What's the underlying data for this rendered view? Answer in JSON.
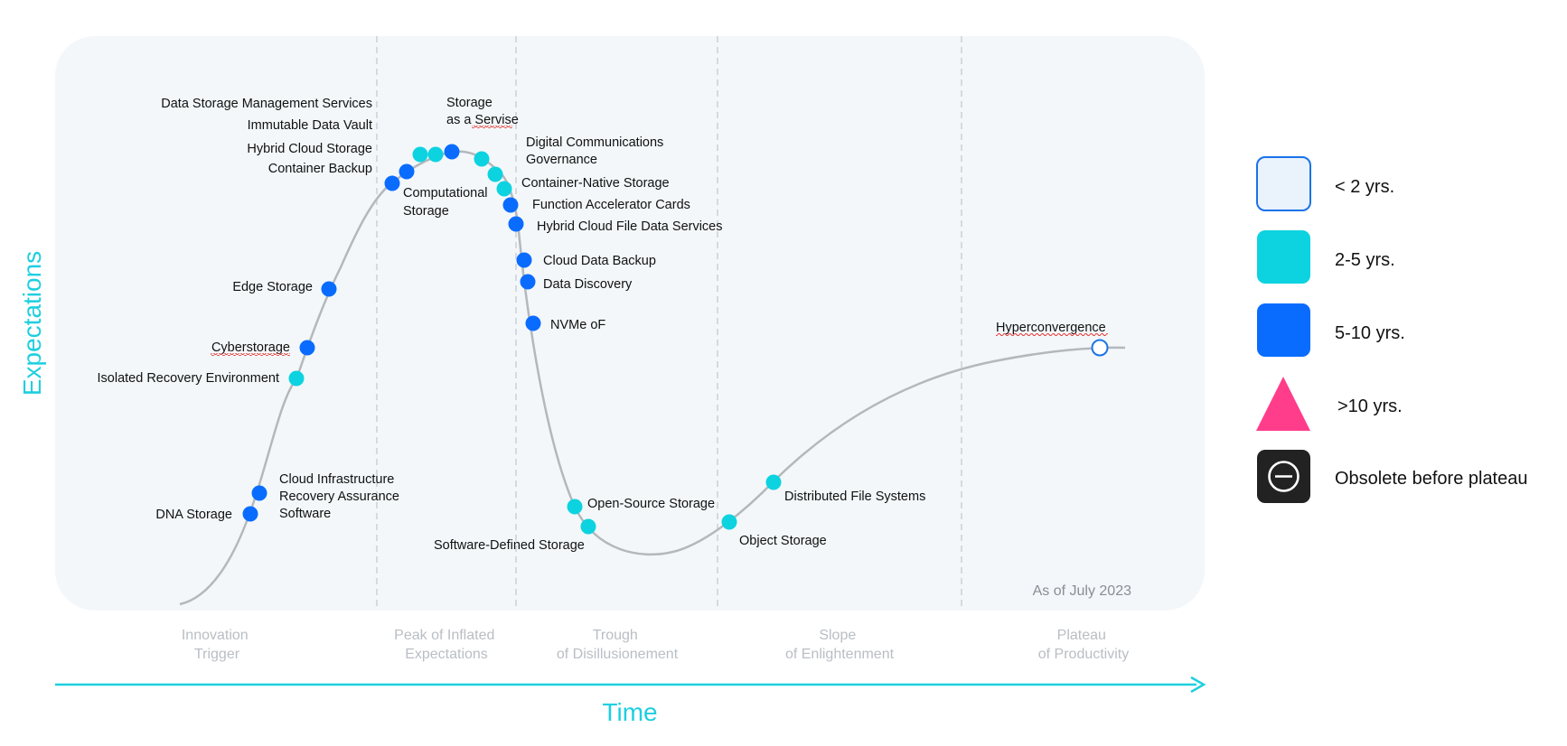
{
  "axes": {
    "x_label": "Time",
    "y_label": "Expectations",
    "color": "#1ecfe0"
  },
  "as_of": "As of July 2023",
  "phases": [
    {
      "line1": "Innovation",
      "line2": "Trigger"
    },
    {
      "line1": "Peak of Inflated",
      "line2": "Expectations"
    },
    {
      "line1": "Trough",
      "line2": "of Disillusionement"
    },
    {
      "line1": "Slope",
      "line2": "of Enlightenment"
    },
    {
      "line1": "Plateau",
      "line2": "of Productivity"
    }
  ],
  "colors": {
    "lt2": "#1a73e8",
    "2to5": "#0dd3e0",
    "5to10": "#0a6cff",
    "gt10": "#ff3d8b",
    "obsolete": "#222222",
    "panel": "#f3f7fa",
    "curve": "#b5b8bb"
  },
  "legend": [
    {
      "category": "lt2",
      "label": "< 2 yrs."
    },
    {
      "category": "2to5",
      "label": "2-5 yrs."
    },
    {
      "category": "5to10",
      "label": "5-10 yrs."
    },
    {
      "category": "gt10",
      "label": ">10 yrs."
    },
    {
      "category": "obsolete",
      "label": "Obsolete before plateau"
    }
  ],
  "technologies": [
    {
      "label": [
        "Data Storage Management Services"
      ],
      "category": "2to5"
    },
    {
      "label": [
        "Immutable Data Vault"
      ],
      "category": "2to5"
    },
    {
      "label": [
        "Hybrid Cloud Storage"
      ],
      "category": "5to10"
    },
    {
      "label": [
        "Container Backup"
      ],
      "category": "5to10"
    },
    {
      "label": [
        "Storage",
        "as a Servise"
      ],
      "category": "5to10"
    },
    {
      "label": [
        "Computational",
        "Storage"
      ],
      "category": "2to5"
    },
    {
      "label": [
        "Digital Communications",
        "Governance"
      ],
      "category": "2to5"
    },
    {
      "label": [
        "Container-Native Storage"
      ],
      "category": "2to5"
    },
    {
      "label": [
        "Function Accelerator Cards"
      ],
      "category": "5to10"
    },
    {
      "label": [
        "Hybrid Cloud File Data Services"
      ],
      "category": "5to10"
    },
    {
      "label": [
        "Edge Storage"
      ],
      "category": "5to10"
    },
    {
      "label": [
        "Cloud Data Backup"
      ],
      "category": "5to10"
    },
    {
      "label": [
        "Data Discovery"
      ],
      "category": "5to10"
    },
    {
      "label": [
        "Cyberstorage"
      ],
      "category": "5to10"
    },
    {
      "label": [
        "NVMe oF"
      ],
      "category": "5to10"
    },
    {
      "label": [
        "Isolated Recovery Environment"
      ],
      "category": "2to5"
    },
    {
      "label": [
        "Cloud Infrastructure",
        "Recovery Assurance",
        "Software"
      ],
      "category": "5to10"
    },
    {
      "label": [
        "DNA Storage"
      ],
      "category": "5to10"
    },
    {
      "label": [
        "Open-Source Storage"
      ],
      "category": "2to5"
    },
    {
      "label": [
        "Software-Defined Storage"
      ],
      "category": "2to5"
    },
    {
      "label": [
        "Object Storage"
      ],
      "category": "2to5"
    },
    {
      "label": [
        "Distributed File Systems"
      ],
      "category": "2to5"
    },
    {
      "label": [
        "Hyperconvergence"
      ],
      "category": "lt2"
    }
  ]
}
